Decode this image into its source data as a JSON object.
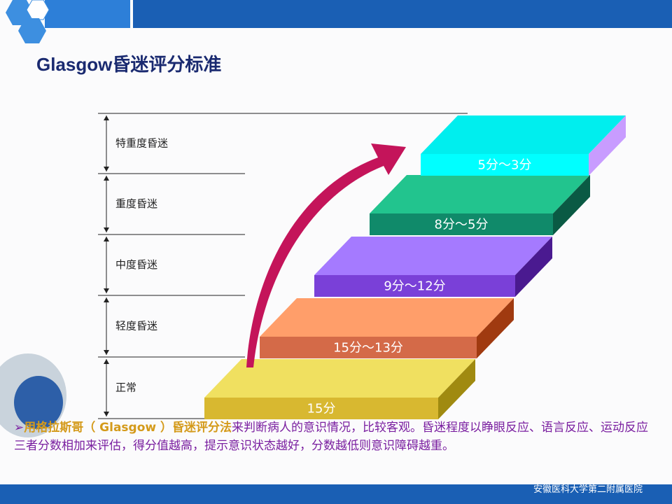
{
  "title": "Glasgow昏迷评分标准",
  "levels": [
    "特重度昏迷",
    "重度昏迷",
    "中度昏迷",
    "轻度昏迷",
    "正常"
  ],
  "steps": [
    "15分",
    "15分～13分",
    "9分～12分",
    "8分～5分",
    "5分～3分"
  ],
  "paragraph": {
    "highlight": "用格拉斯哥（ Glasgow ）昏迷评分法",
    "text": "来判断病人的意识情况，比较客观。昏迷程度以睁眼反应、语言反应、运动反应三者分数相加来评估，得分值越高，提示意识状态越好，分数越低则意识障碍越重。"
  },
  "footer": "安徽医科大学第二附属医院"
}
